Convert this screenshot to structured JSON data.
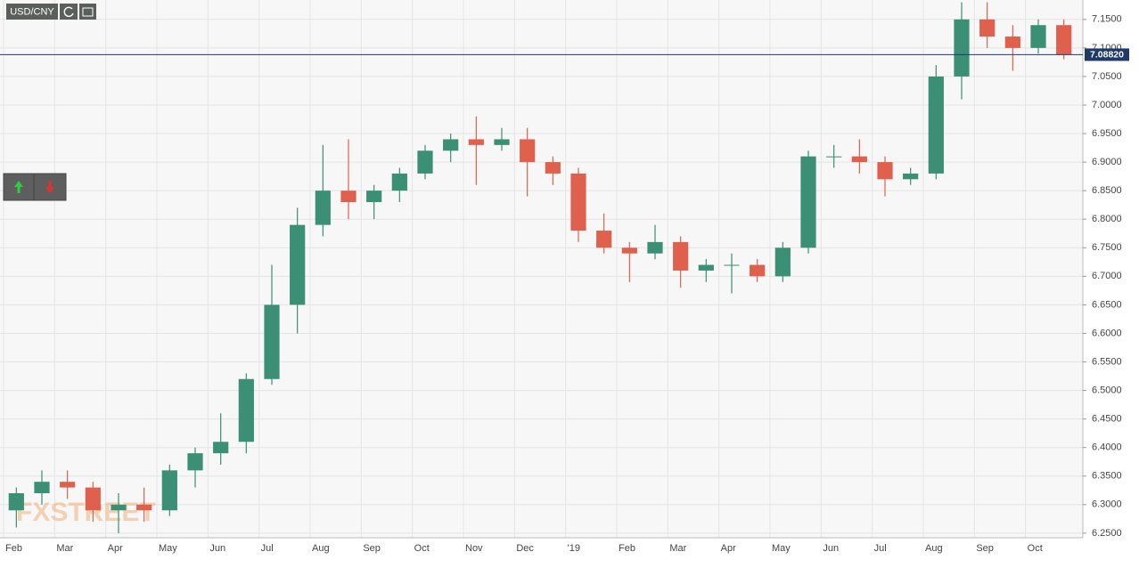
{
  "chart_data": {
    "type": "candlestick",
    "title": "USD/CNY",
    "watermark": "FXSTREET",
    "categories": [
      "Feb",
      null,
      "Mar",
      null,
      "Apr",
      null,
      "May",
      null,
      "Jun",
      null,
      "Jul",
      null,
      "Aug",
      null,
      "Sep",
      null,
      "Oct",
      null,
      "Nov",
      null,
      "Dec",
      null,
      "'19",
      null,
      "Feb",
      null,
      "Mar",
      null,
      "Apr",
      null,
      "May",
      null,
      "Jun",
      null,
      "Jul",
      null,
      "Aug",
      null,
      "Sep",
      null,
      "Oct",
      null
    ],
    "open": [
      6.29,
      6.32,
      6.34,
      6.33,
      6.29,
      6.3,
      6.29,
      6.36,
      6.39,
      6.41,
      6.52,
      6.65,
      6.79,
      6.85,
      6.83,
      6.85,
      6.88,
      6.92,
      6.94,
      6.93,
      6.94,
      6.9,
      6.88,
      6.78,
      6.75,
      6.74,
      6.76,
      6.71,
      6.72,
      6.72,
      6.7,
      6.75,
      6.91,
      6.91,
      6.9,
      6.87,
      6.88,
      7.05,
      7.15,
      7.12,
      7.1,
      7.14
    ],
    "high": [
      6.33,
      6.36,
      6.36,
      6.34,
      6.32,
      6.33,
      6.37,
      6.4,
      6.46,
      6.53,
      6.72,
      6.82,
      6.93,
      6.94,
      6.86,
      6.89,
      6.93,
      6.95,
      6.98,
      6.96,
      6.96,
      6.91,
      6.89,
      6.81,
      6.76,
      6.79,
      6.77,
      6.73,
      6.74,
      6.73,
      6.76,
      6.92,
      6.93,
      6.94,
      6.91,
      6.89,
      7.07,
      7.18,
      7.18,
      7.14,
      7.15,
      7.15
    ],
    "low": [
      6.26,
      6.3,
      6.31,
      6.27,
      6.25,
      6.27,
      6.28,
      6.33,
      6.37,
      6.39,
      6.51,
      6.6,
      6.77,
      6.8,
      6.8,
      6.83,
      6.87,
      6.9,
      6.86,
      6.92,
      6.84,
      6.86,
      6.76,
      6.74,
      6.69,
      6.73,
      6.68,
      6.69,
      6.67,
      6.69,
      6.69,
      6.74,
      6.89,
      6.88,
      6.84,
      6.86,
      6.87,
      7.01,
      7.1,
      7.06,
      7.09,
      7.08
    ],
    "close": [
      6.32,
      6.34,
      6.33,
      6.29,
      6.3,
      6.29,
      6.36,
      6.39,
      6.41,
      6.52,
      6.65,
      6.79,
      6.85,
      6.83,
      6.85,
      6.88,
      6.92,
      6.94,
      6.93,
      6.94,
      6.9,
      6.88,
      6.78,
      6.75,
      6.74,
      6.76,
      6.71,
      6.72,
      6.72,
      6.7,
      6.75,
      6.91,
      6.91,
      6.9,
      6.87,
      6.88,
      7.05,
      7.15,
      7.12,
      7.1,
      7.14,
      7.0882
    ],
    "up_color": "#3a8f74",
    "down_color": "#e0604e",
    "last_price": {
      "value": 7.0882,
      "label": "7.08820"
    },
    "ylim": [
      6.242,
      7.184
    ],
    "yticks": [
      {
        "value": 6.25,
        "label": "6.2500"
      },
      {
        "value": 6.3,
        "label": "6.3000"
      },
      {
        "value": 6.35,
        "label": "6.3500"
      },
      {
        "value": 6.4,
        "label": "6.4000"
      },
      {
        "value": 6.45,
        "label": "6.4500"
      },
      {
        "value": 6.5,
        "label": "6.5000"
      },
      {
        "value": 6.55,
        "label": "6.5500"
      },
      {
        "value": 6.6,
        "label": "6.6000"
      },
      {
        "value": 6.65,
        "label": "6.6500"
      },
      {
        "value": 6.7,
        "label": "6.7000"
      },
      {
        "value": 6.75,
        "label": "6.7500"
      },
      {
        "value": 6.8,
        "label": "6.8000"
      },
      {
        "value": 6.85,
        "label": "6.8500"
      },
      {
        "value": 6.9,
        "label": "6.9000"
      },
      {
        "value": 6.95,
        "label": "6.9500"
      },
      {
        "value": 7.0,
        "label": "7.0000"
      },
      {
        "value": 7.05,
        "label": "7.0500"
      },
      {
        "value": 7.1,
        "label": "7.1000"
      },
      {
        "value": 7.15,
        "label": "7.1500"
      }
    ],
    "grid": true
  }
}
